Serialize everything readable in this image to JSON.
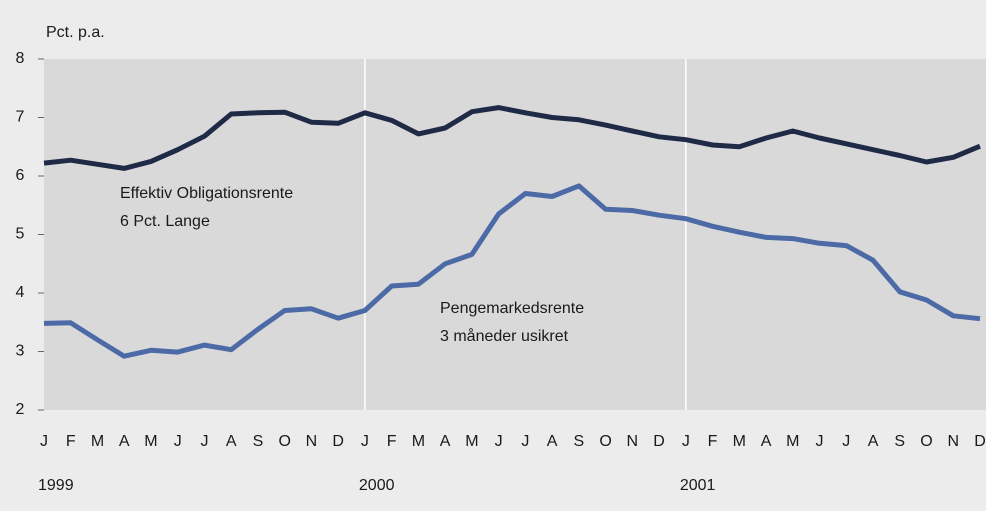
{
  "chart_data": {
    "type": "line",
    "y_axis_label": "Pct. p.a.",
    "categories": [
      "J",
      "F",
      "M",
      "A",
      "M",
      "J",
      "J",
      "A",
      "S",
      "O",
      "N",
      "D",
      "J",
      "F",
      "M",
      "A",
      "M",
      "J",
      "J",
      "A",
      "S",
      "O",
      "N",
      "D",
      "J",
      "F",
      "M",
      "A",
      "M",
      "J",
      "J",
      "A",
      "S",
      "O",
      "N",
      "D"
    ],
    "years": [
      "1999",
      "2000",
      "2001"
    ],
    "ylim": [
      2,
      8
    ],
    "yticks": [
      2,
      3,
      4,
      5,
      6,
      7,
      8
    ],
    "grid": false,
    "series": [
      {
        "name": "Effektiv Obligationsrente",
        "note": "6 Pct. Lange",
        "color": "#1e2a46",
        "values": [
          6.22,
          6.27,
          6.2,
          6.13,
          6.25,
          6.45,
          6.68,
          7.06,
          7.08,
          7.09,
          6.92,
          6.9,
          7.08,
          6.95,
          6.72,
          6.82,
          7.1,
          7.17,
          7.08,
          7.0,
          6.96,
          6.87,
          6.77,
          6.67,
          6.62,
          6.53,
          6.5,
          6.65,
          6.77,
          6.65,
          6.55,
          6.45,
          6.35,
          6.24,
          6.32,
          6.51
        ]
      },
      {
        "name": "Pengemarkedsrente",
        "note": "3 måneder usikret",
        "color": "#4b6aa6",
        "values": [
          3.48,
          3.49,
          3.2,
          2.92,
          3.02,
          2.99,
          3.11,
          3.03,
          3.38,
          3.7,
          3.73,
          3.57,
          3.7,
          4.12,
          4.15,
          4.5,
          4.66,
          5.35,
          5.7,
          5.65,
          5.83,
          5.43,
          5.41,
          5.33,
          5.27,
          5.14,
          5.04,
          4.95,
          4.93,
          4.85,
          4.81,
          4.56,
          4.02,
          3.88,
          3.61,
          3.56
        ]
      }
    ]
  }
}
